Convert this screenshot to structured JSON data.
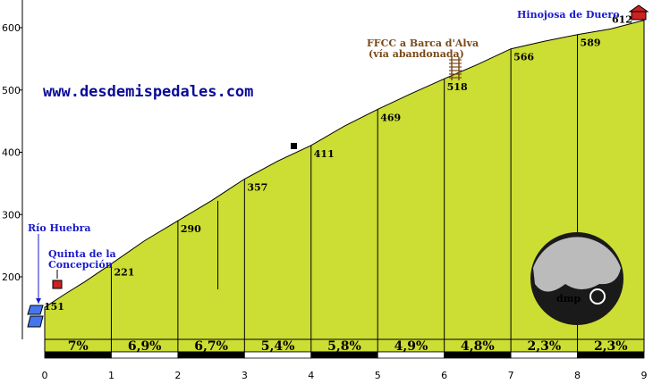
{
  "chart_data": {
    "type": "area",
    "title": "",
    "xlabel": "",
    "ylabel": "",
    "xlim": [
      0,
      9
    ],
    "ylim": [
      120,
      620
    ],
    "x_ticks": [
      "0",
      "1",
      "2",
      "3",
      "4",
      "5",
      "6",
      "7",
      "8",
      "9"
    ],
    "y_ticks": [
      "200",
      "300",
      "400",
      "500",
      "600"
    ],
    "y_tick_values": [
      200,
      300,
      400,
      500,
      600
    ],
    "profile": [
      {
        "x": 0,
        "y": 151
      },
      {
        "x": 0.3,
        "y": 172
      },
      {
        "x": 0.6,
        "y": 192
      },
      {
        "x": 1,
        "y": 221
      },
      {
        "x": 1.5,
        "y": 258
      },
      {
        "x": 2,
        "y": 290
      },
      {
        "x": 2.5,
        "y": 322
      },
      {
        "x": 3,
        "y": 357
      },
      {
        "x": 3.5,
        "y": 386
      },
      {
        "x": 4,
        "y": 411
      },
      {
        "x": 4.5,
        "y": 442
      },
      {
        "x": 5,
        "y": 469
      },
      {
        "x": 5.5,
        "y": 494
      },
      {
        "x": 6,
        "y": 518
      },
      {
        "x": 6.5,
        "y": 541
      },
      {
        "x": 7,
        "y": 566
      },
      {
        "x": 7.5,
        "y": 578
      },
      {
        "x": 8,
        "y": 589
      },
      {
        "x": 8.5,
        "y": 598
      },
      {
        "x": 9,
        "y": 612
      }
    ],
    "km_markers": [
      {
        "x": 0,
        "elevation": "151"
      },
      {
        "x": 1,
        "elevation": "221"
      },
      {
        "x": 2,
        "elevation": "290"
      },
      {
        "x": 3,
        "elevation": "357"
      },
      {
        "x": 4,
        "elevation": "411"
      },
      {
        "x": 5,
        "elevation": "469"
      },
      {
        "x": 6,
        "elevation": "518"
      },
      {
        "x": 7,
        "elevation": "566"
      },
      {
        "x": 8,
        "elevation": "589"
      },
      {
        "x": 9,
        "elevation": "612"
      }
    ],
    "gradients": [
      "7%",
      "6,9%",
      "6,7%",
      "5,4%",
      "5,8%",
      "4,9%",
      "4,8%",
      "2,3%",
      "2,3%"
    ],
    "extra_marker_x": 2.6,
    "extra_marker_top": 322,
    "extra_marker_bottom": 180,
    "annotations": {
      "start_river": "Río Huebra",
      "farm_line1": "Quinta de la",
      "farm_line2": "Concepción",
      "railway_line1": "FFCC a Barca d'Alva",
      "railway_line2": "(vía abandonada)",
      "end_town": "Hinojosa de Duero"
    },
    "website": "www.desdemispedales.com",
    "logo_text": "dmp",
    "colors": {
      "fill": "#ccdd33",
      "place_blue": "#1a1acc",
      "railway_brown": "#7a4a1a",
      "site_blue": "#0a0a99"
    }
  }
}
